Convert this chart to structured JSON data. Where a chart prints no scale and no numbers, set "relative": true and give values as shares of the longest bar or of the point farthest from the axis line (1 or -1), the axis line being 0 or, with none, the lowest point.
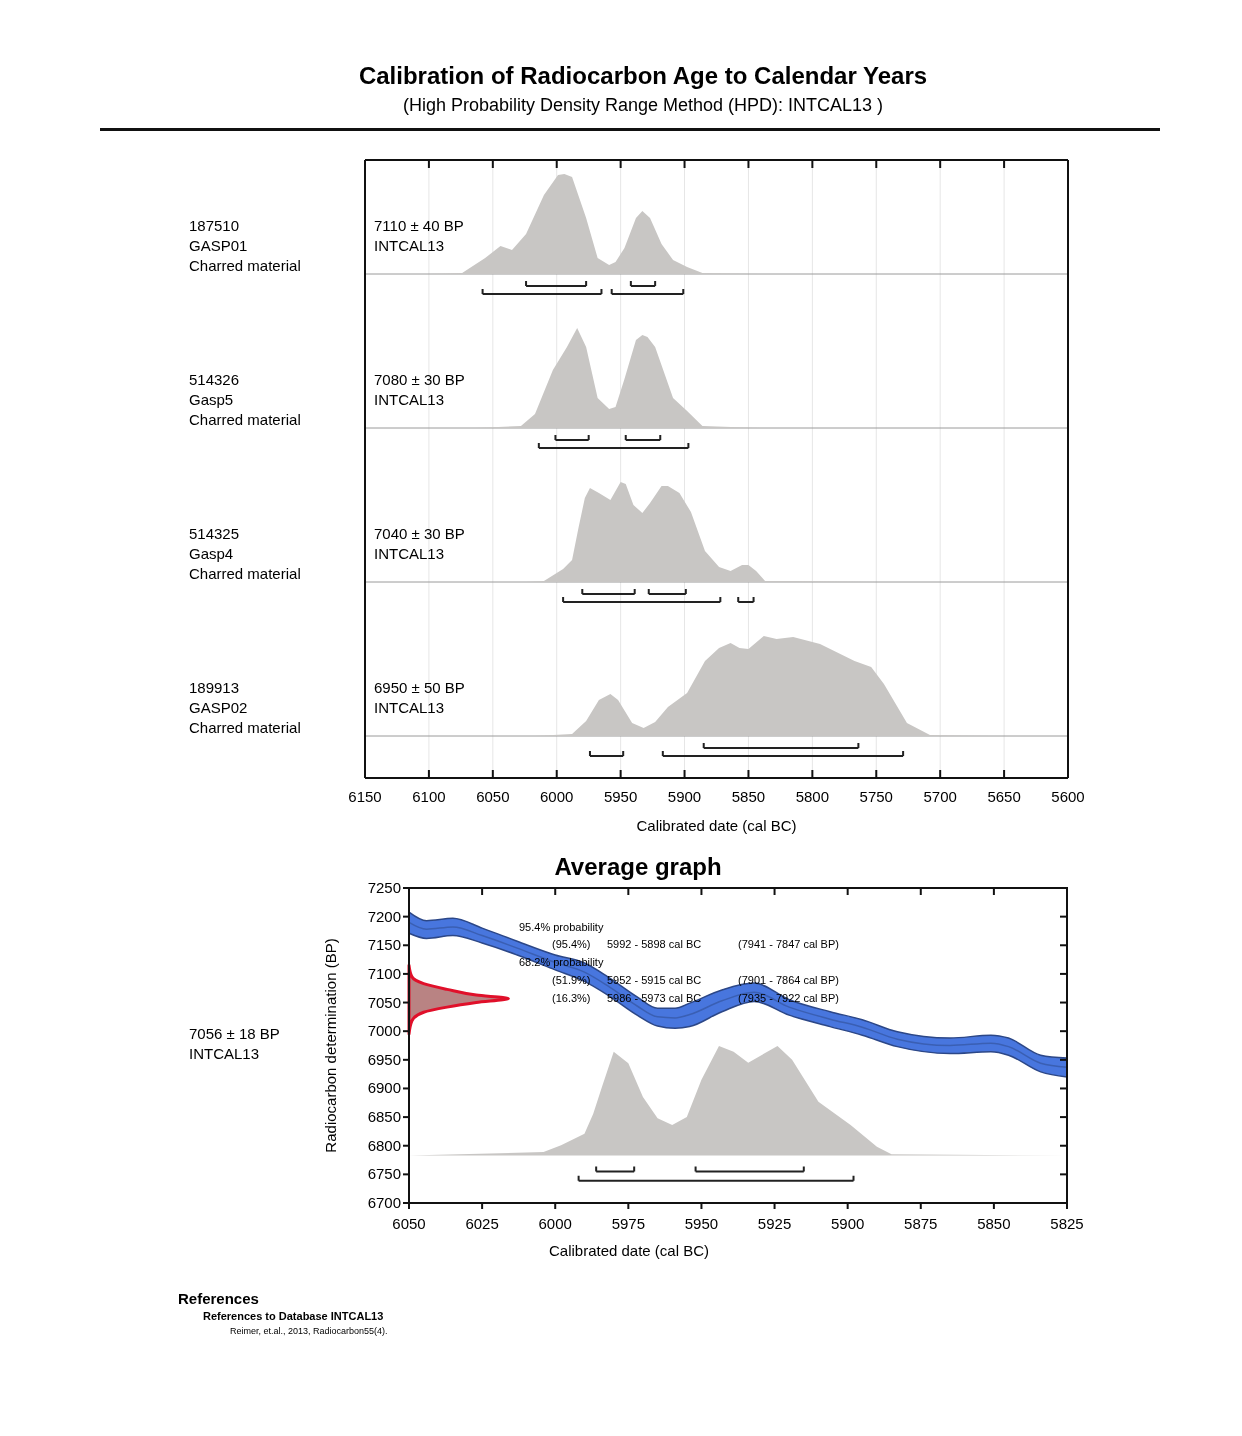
{
  "chart_data": [
    {
      "type": "area",
      "title": "Calibration of Radiocarbon Age to Calendar Years",
      "subtitle": "(High Probability Density Range Method (HPD): INTCAL13 )",
      "relative": true,
      "grid": "x",
      "tick_labels": false,
      "xlim": [
        6150,
        5600
      ],
      "xticks": [
        6150,
        6100,
        6050,
        6000,
        5950,
        5900,
        5850,
        5800,
        5750,
        5700,
        5650,
        5600
      ],
      "series": [
        {
          "color": "#c8c6c4",
          "x": [
            6100,
            6074,
            6056,
            6044,
            6035,
            6024,
            6010,
            5999,
            5994,
            5988,
            5977,
            5968,
            5959,
            5954,
            5947,
            5938,
            5933,
            5927,
            5918,
            5909,
            5898,
            5886,
            5841
          ],
          "values": [
            0,
            0.01,
            0.16,
            0.28,
            0.24,
            0.4,
            0.79,
            0.99,
            1,
            0.97,
            0.56,
            0.16,
            0.09,
            0.12,
            0.26,
            0.56,
            0.63,
            0.56,
            0.3,
            0.14,
            0.07,
            0.01,
            0
          ]
        },
        {
          "type": "line",
          "color": "#222222",
          "x": [
            6024,
            5977
          ],
          "values": [
            -0.12,
            -0.12
          ]
        },
        {
          "type": "line",
          "color": "#222222",
          "x": [
            5942,
            5923
          ],
          "values": [
            -0.12,
            -0.12
          ]
        },
        {
          "type": "line",
          "color": "#222222",
          "x": [
            6058,
            5965
          ],
          "values": [
            -0.2,
            -0.2
          ]
        },
        {
          "type": "line",
          "color": "#222222",
          "x": [
            5957,
            5901
          ],
          "values": [
            -0.2,
            -0.2
          ]
        }
      ],
      "annotations": [
        "187510",
        "GASP01",
        "Charred material",
        "7110 ± 40 BP",
        "INTCAL13"
      ]
    },
    {
      "type": "area",
      "relative": true,
      "grid": "x",
      "tick_labels": false,
      "xlim": [
        6150,
        5600
      ],
      "xticks": [
        6150,
        6100,
        6050,
        6000,
        5950,
        5900,
        5850,
        5800,
        5750,
        5700,
        5650,
        5600
      ],
      "series": [
        {
          "color": "#c8c6c4",
          "x": [
            6064,
            6028,
            6017,
            6003,
            5992,
            5984,
            5977,
            5968,
            5959,
            5954,
            5947,
            5938,
            5933,
            5929,
            5923,
            5909,
            5898,
            5886,
            5841
          ],
          "values": [
            0,
            0.02,
            0.14,
            0.58,
            0.81,
            1,
            0.81,
            0.3,
            0.19,
            0.21,
            0.49,
            0.88,
            0.93,
            0.91,
            0.81,
            0.3,
            0.17,
            0.02,
            0
          ]
        },
        {
          "type": "line",
          "color": "#222222",
          "x": [
            6001,
            5975
          ],
          "values": [
            -0.12,
            -0.12
          ]
        },
        {
          "type": "line",
          "color": "#222222",
          "x": [
            5946,
            5919
          ],
          "values": [
            -0.12,
            -0.12
          ]
        },
        {
          "type": "line",
          "color": "#222222",
          "x": [
            6014,
            5897
          ],
          "values": [
            -0.2,
            -0.2
          ]
        }
      ],
      "annotations": [
        "514326",
        "Gasp5",
        "Charred material",
        "7080 ± 30 BP",
        "INTCAL13"
      ]
    },
    {
      "type": "area",
      "relative": true,
      "grid": "x",
      "tick_labels": false,
      "xlim": [
        6150,
        5600
      ],
      "xticks": [
        6150,
        6100,
        6050,
        6000,
        5950,
        5900,
        5850,
        5800,
        5750,
        5700,
        5650,
        5600
      ],
      "series": [
        {
          "color": "#c8c6c4",
          "x": [
            6024,
            6010,
            5995,
            5988,
            5983,
            5978,
            5974,
            5967,
            5958,
            5950,
            5946,
            5940,
            5933,
            5927,
            5918,
            5913,
            5904,
            5895,
            5884,
            5873,
            5864,
            5855,
            5850,
            5844,
            5837,
            5815,
            5751
          ],
          "values": [
            0,
            0.01,
            0.13,
            0.22,
            0.54,
            0.84,
            0.94,
            0.89,
            0.82,
            1,
            0.98,
            0.77,
            0.69,
            0.79,
            0.96,
            0.96,
            0.89,
            0.7,
            0.31,
            0.15,
            0.11,
            0.17,
            0.17,
            0.11,
            0.01,
            0.01,
            0
          ]
        },
        {
          "type": "line",
          "color": "#222222",
          "x": [
            5980,
            5939
          ],
          "values": [
            -0.12,
            -0.12
          ]
        },
        {
          "type": "line",
          "color": "#222222",
          "x": [
            5928,
            5899
          ],
          "values": [
            -0.12,
            -0.12
          ]
        },
        {
          "type": "line",
          "color": "#222222",
          "x": [
            5995,
            5872
          ],
          "values": [
            -0.2,
            -0.2
          ]
        },
        {
          "type": "line",
          "color": "#222222",
          "x": [
            5858,
            5846
          ],
          "values": [
            -0.2,
            -0.2
          ]
        }
      ],
      "annotations": [
        "514325",
        "Gasp4",
        "Charred material",
        "7040 ± 30 BP",
        "INTCAL13"
      ]
    },
    {
      "type": "area",
      "relative": true,
      "grid": "x",
      "xlabel": "Calibrated date (cal BC)",
      "xlim": [
        6150,
        5600
      ],
      "xticks": [
        6150,
        6100,
        6050,
        6000,
        5950,
        5900,
        5850,
        5800,
        5750,
        5700,
        5650,
        5600
      ],
      "series": [
        {
          "color": "#c8c6c4",
          "x": [
            6017,
            5988,
            5977,
            5967,
            5958,
            5952,
            5941,
            5932,
            5923,
            5913,
            5898,
            5884,
            5873,
            5864,
            5857,
            5850,
            5838,
            5828,
            5815,
            5794,
            5767,
            5754,
            5744,
            5726,
            5708,
            5661
          ],
          "values": [
            0,
            0.02,
            0.15,
            0.36,
            0.42,
            0.36,
            0.13,
            0.08,
            0.14,
            0.29,
            0.43,
            0.75,
            0.88,
            0.93,
            0.88,
            0.87,
            1,
            0.97,
            0.99,
            0.92,
            0.75,
            0.69,
            0.52,
            0.13,
            0.01,
            0
          ]
        },
        {
          "type": "line",
          "color": "#222222",
          "x": [
            5885,
            5764
          ],
          "values": [
            -0.12,
            -0.12
          ]
        },
        {
          "type": "line",
          "color": "#222222",
          "x": [
            5974,
            5948
          ],
          "values": [
            -0.2,
            -0.2
          ]
        },
        {
          "type": "line",
          "color": "#222222",
          "x": [
            5917,
            5729
          ],
          "values": [
            -0.2,
            -0.2
          ]
        }
      ],
      "annotations": [
        "189913",
        "GASP02",
        "Charred material",
        "6950 ± 50 BP",
        "INTCAL13"
      ]
    },
    {
      "type": "line",
      "title": "Average graph",
      "xlabel": "Calibrated date (cal BC)",
      "ylabel": "Radiocarbon determination (BP)",
      "xlim": [
        6050,
        5825
      ],
      "xticks": [
        6050,
        6025,
        6000,
        5975,
        5950,
        5925,
        5900,
        5875,
        5850,
        5825
      ],
      "ylim": [
        6700,
        7250
      ],
      "yticks": [
        6700,
        6750,
        6800,
        6850,
        6900,
        6950,
        7000,
        7050,
        7100,
        7150,
        7200,
        7250
      ],
      "series": [
        {
          "type": "area",
          "color": "#c8c6c4",
          "x": [
            6050,
            6004,
            5998,
            5990,
            5987,
            5984,
            5980,
            5975,
            5970,
            5965,
            5960,
            5955,
            5950,
            5944,
            5939,
            5934,
            5924,
            5919,
            5910,
            5899,
            5890,
            5885,
            5825
          ],
          "values": [
            6783,
            6789,
            6801,
            6821,
            6856,
            6903,
            6964,
            6944,
            6885,
            6848,
            6836,
            6850,
            6915,
            6974,
            6964,
            6945,
            6974,
            6950,
            6877,
            6836,
            6798,
            6785,
            6783
          ]
        },
        {
          "color": "#3a5fb3",
          "x": [
            6050,
            6044,
            6035,
            6025,
            6013,
            6000,
            5990,
            5982,
            5972,
            5965,
            5959,
            5954,
            5943,
            5932,
            5920,
            5906,
            5895,
            5883,
            5865,
            5851,
            5845,
            5834,
            5825
          ],
          "values": [
            7190,
            7178,
            7182,
            7167,
            7145,
            7120,
            7103,
            7079,
            7044,
            7025,
            7023,
            7029,
            7053,
            7068,
            7042,
            7021,
            7007,
            6986,
            6975,
            6979,
            6973,
            6944,
            6937
          ],
          "upper": [
            7208,
            7193,
            7197,
            7180,
            7157,
            7133,
            7119,
            7095,
            7060,
            7040,
            7040,
            7049,
            7072,
            7084,
            7055,
            7034,
            7020,
            6999,
            6988,
            6993,
            6988,
            6958,
            6953
          ],
          "lower": [
            7171,
            7162,
            7167,
            7154,
            7133,
            7107,
            7087,
            7063,
            7028,
            7009,
            7005,
            7008,
            7034,
            7052,
            7028,
            7008,
            6993,
            6973,
            6961,
            6964,
            6958,
            6929,
            6920
          ]
        },
        {
          "type": "area",
          "color": "#b98383",
          "x": [
            6050,
            6049,
            6045,
            6037,
            6027,
            6016,
            6027,
            6037,
            6045,
            6049,
            6050
          ],
          "values": [
            7115,
            7095,
            7083,
            7073,
            7063,
            7057,
            7050,
            7042,
            7033,
            7018,
            6995
          ]
        },
        {
          "color": "#222222",
          "x": [
            5986,
            5973
          ],
          "values": [
            6755,
            6755
          ]
        },
        {
          "color": "#222222",
          "x": [
            5952,
            5915
          ],
          "values": [
            6755,
            6755
          ]
        },
        {
          "color": "#222222",
          "x": [
            5992,
            5898
          ],
          "values": [
            6739,
            6739
          ]
        }
      ],
      "annotations": [
        "95.4% probability",
        "(95.4%)",
        "5992 - 5898 cal BC",
        "(7941 - 7847 cal BP)",
        "68.2% probability",
        "(51.9%)",
        "5952 - 5915 cal BC",
        "(7901 - 7864 cal BP)",
        "(16.3%)",
        "5986 - 5973 cal BC",
        "(7935 - 7922 cal BP)",
        "7056 ± 18 BP",
        "INTCAL13",
        "References",
        "References to Database INTCAL13",
        "Reimer, et.al., 2013, Radiocarbon55(4)."
      ]
    }
  ]
}
